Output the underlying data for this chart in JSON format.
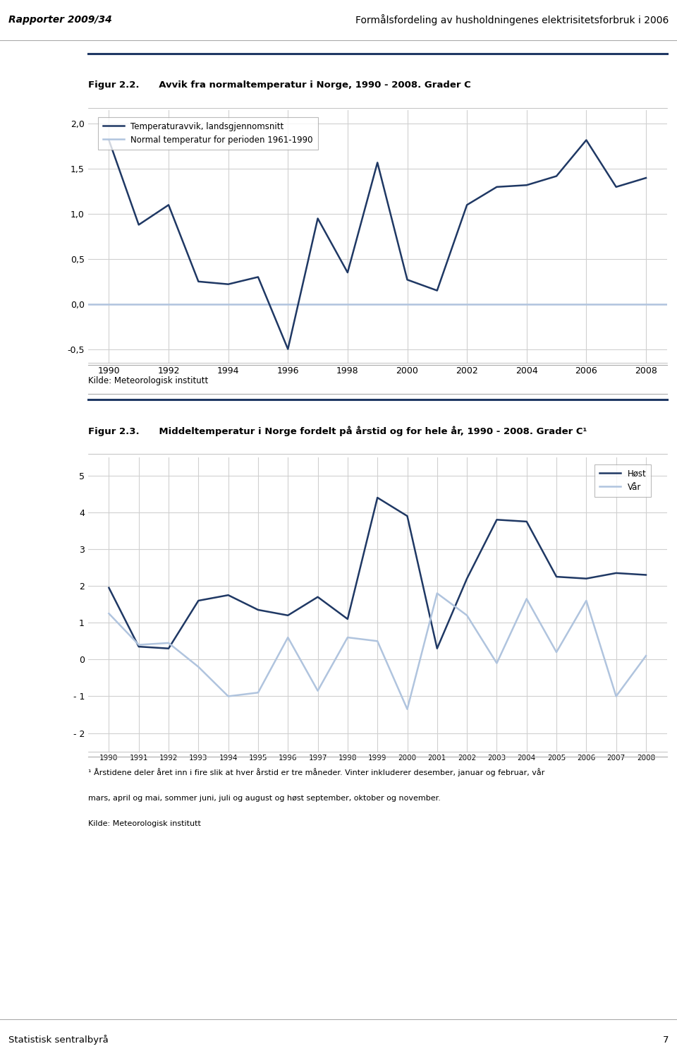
{
  "header_left": "Rapporter 2009/34",
  "header_right": "Formålsfordeling av husholdningenes elektrisitetsforbruk i 2006",
  "fig1_title": "Figur 2.2.      Avvik fra normaltemperatur i Norge, 1990 - 2008. Grader C",
  "fig1_legend1": "Temperaturavvik, landsgjennomsnitt",
  "fig1_legend2": "Normal temperatur for perioden 1961-1990",
  "fig1_ylabel_ticks": [
    "-0,5",
    "0,0",
    "0,5",
    "1,0",
    "1,5",
    "2,0"
  ],
  "fig1_yticks": [
    -0.5,
    0.0,
    0.5,
    1.0,
    1.5,
    2.0
  ],
  "fig1_ylim": [
    -0.65,
    2.15
  ],
  "fig1_xticks": [
    1990,
    1992,
    1994,
    1996,
    1998,
    2000,
    2002,
    2004,
    2006,
    2008
  ],
  "fig1_source": "Kilde: Meteorologisk institutt",
  "fig1_years": [
    1990,
    1991,
    1992,
    1993,
    1994,
    1995,
    1996,
    1997,
    1998,
    1999,
    2000,
    2001,
    2002,
    2003,
    2004,
    2005,
    2006,
    2007,
    2008
  ],
  "fig1_values": [
    1.82,
    0.88,
    1.1,
    0.25,
    0.22,
    0.3,
    -0.5,
    0.95,
    0.35,
    1.57,
    0.27,
    0.15,
    1.1,
    1.3,
    1.32,
    1.42,
    1.82,
    1.3,
    1.4
  ],
  "fig1_line_color": "#1F3864",
  "fig1_hline_color": "#B0C4DE",
  "fig2_title": "Figur 2.3.      Middeltemperatur i Norge fordelt på årstid og for hele år, 1990 - 2008. Grader C¹",
  "fig2_legend1": "Høst",
  "fig2_legend2": "Vår",
  "fig2_source1": "¹ Årstidene deler året inn i fire slik at hver årstid er tre måneder. Vinter inkluderer desember, januar og februar, vår",
  "fig2_source2": "mars, april og mai, sommer juni, juli og august og høst september, oktober og november.",
  "fig2_source3": "Kilde: Meteorologisk institutt",
  "fig2_years": [
    1990,
    1991,
    1992,
    1993,
    1994,
    1995,
    1996,
    1997,
    1998,
    1999,
    2000,
    2001,
    2002,
    2003,
    2004,
    2005,
    2006,
    2007,
    2008
  ],
  "fig2_host_values": [
    1.95,
    0.35,
    0.3,
    1.6,
    1.75,
    1.35,
    1.2,
    1.7,
    1.1,
    4.4,
    3.9,
    0.3,
    2.2,
    3.8,
    3.75,
    2.25,
    2.2,
    2.35,
    2.3
  ],
  "fig2_var_values": [
    1.25,
    0.4,
    0.45,
    -0.2,
    -1.0,
    -0.9,
    0.6,
    -0.85,
    0.6,
    0.5,
    -1.35,
    1.8,
    1.2,
    -0.1,
    1.65,
    0.2,
    1.6,
    -1.0,
    0.1
  ],
  "fig2_yticks": [
    -2,
    -1,
    0,
    1,
    2,
    3,
    4,
    5
  ],
  "fig2_ylabel_ticks": [
    "- 2",
    "- 1",
    "0",
    "1",
    "2",
    "3",
    "4",
    "5"
  ],
  "fig2_ylim": [
    -2.5,
    5.5
  ],
  "fig2_xticks": [
    1990,
    1991,
    1992,
    1993,
    1994,
    1995,
    1996,
    1997,
    1998,
    1999,
    2000,
    2001,
    2002,
    2003,
    2004,
    2005,
    2006,
    2007,
    2008
  ],
  "fig2_line1_color": "#1F3864",
  "fig2_line2_color": "#B0C4DE",
  "background_color": "#ffffff",
  "grid_color": "#d0d0d0",
  "page_number": "7"
}
